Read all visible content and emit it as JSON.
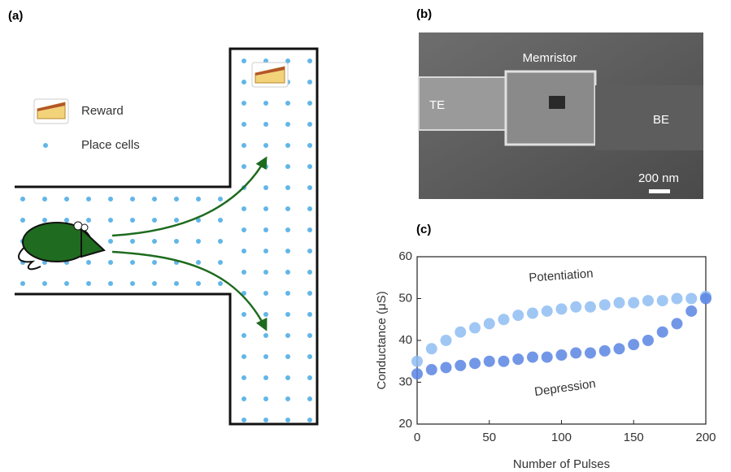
{
  "panel_a": {
    "label": "(a)",
    "reward_label": "Reward",
    "place_cells_label": "Place cells"
  },
  "panel_b": {
    "label": "(b)",
    "device_label": "Memristor",
    "top_electrode": "TE",
    "bottom_electrode": "BE",
    "scale_bar": "200 nm"
  },
  "panel_c": {
    "label": "(c)"
  },
  "chart_data": {
    "type": "scatter",
    "x_label": "Number of Pulses",
    "y_label": "Conductance (μS)",
    "x": [
      0,
      10,
      20,
      30,
      40,
      50,
      60,
      70,
      80,
      90,
      100,
      110,
      120,
      130,
      140,
      150,
      160,
      170,
      180,
      190,
      200
    ],
    "series": [
      {
        "name": "Potentiation",
        "color": "#8fbdf2",
        "values": [
          35,
          38,
          40,
          42,
          43,
          44,
          45,
          46,
          46.5,
          47,
          47.5,
          48,
          48,
          48.5,
          49,
          49,
          49.5,
          49.5,
          50,
          50,
          50.5
        ]
      },
      {
        "name": "Depression",
        "color": "#5b85e3",
        "values": [
          32,
          33,
          33.5,
          34,
          34.5,
          35,
          35,
          35.5,
          36,
          36,
          36.5,
          37,
          37,
          37.5,
          38,
          39,
          40,
          42,
          44,
          47,
          50
        ]
      }
    ],
    "xlim": [
      0,
      200
    ],
    "xticks": [
      0,
      50,
      100,
      150,
      200
    ],
    "ylim": [
      20,
      60
    ],
    "yticks": [
      20,
      30,
      40,
      50,
      60
    ]
  }
}
